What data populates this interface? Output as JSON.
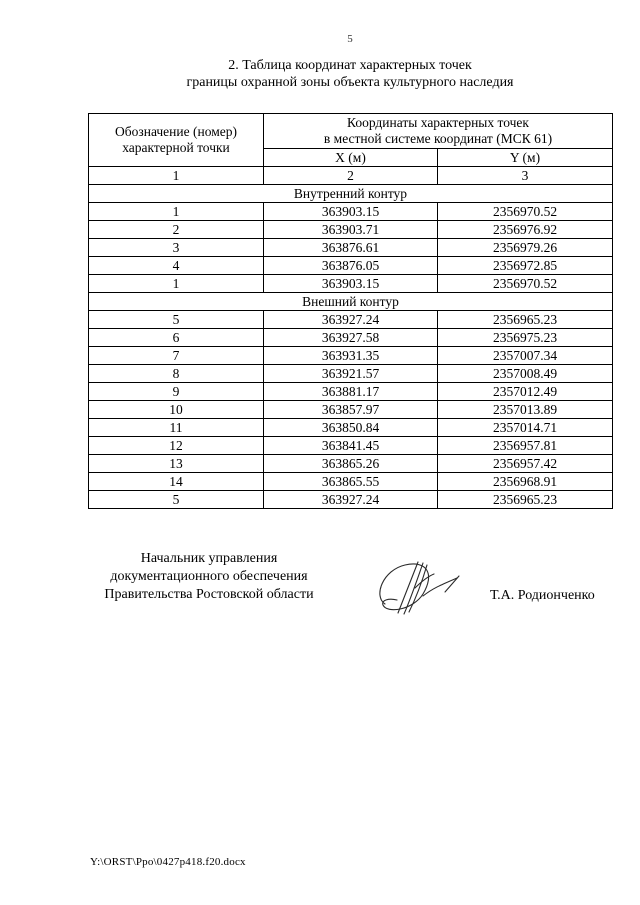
{
  "page": {
    "number": "5",
    "footer_path": "Y:\\ORST\\Ppo\\0427p418.f20.docx"
  },
  "title": {
    "line1": "2. Таблица координат характерных точек",
    "line2": "границы охранной зоны объекта культурного наследия"
  },
  "table": {
    "header": {
      "point_label_line1": "Обозначение (номер)",
      "point_label_line2": "характерной точки",
      "coords_label_line1": "Координаты характерных точек",
      "coords_label_line2": "в местной системе координат (МСК 61)",
      "x_label": "X (м)",
      "y_label": "Y (м)",
      "col_num_1": "1",
      "col_num_2": "2",
      "col_num_3": "3"
    },
    "sections": [
      {
        "name": "Внутренний контур",
        "rows": [
          [
            "1",
            "363903.15",
            "2356970.52"
          ],
          [
            "2",
            "363903.71",
            "2356976.92"
          ],
          [
            "3",
            "363876.61",
            "2356979.26"
          ],
          [
            "4",
            "363876.05",
            "2356972.85"
          ],
          [
            "1",
            "363903.15",
            "2356970.52"
          ]
        ]
      },
      {
        "name": "Внешний контур",
        "rows": [
          [
            "5",
            "363927.24",
            "2356965.23"
          ],
          [
            "6",
            "363927.58",
            "2356975.23"
          ],
          [
            "7",
            "363931.35",
            "2357007.34"
          ],
          [
            "8",
            "363921.57",
            "2357008.49"
          ],
          [
            "9",
            "363881.17",
            "2357012.49"
          ],
          [
            "10",
            "363857.97",
            "2357013.89"
          ],
          [
            "11",
            "363850.84",
            "2357014.71"
          ],
          [
            "12",
            "363841.45",
            "2356957.81"
          ],
          [
            "13",
            "363865.26",
            "2356957.42"
          ],
          [
            "14",
            "363865.55",
            "2356968.91"
          ],
          [
            "5",
            "363927.24",
            "2356965.23"
          ]
        ]
      }
    ]
  },
  "signature": {
    "position_line1": "Начальник управления",
    "position_line2": "документационного обеспечения",
    "position_line3": "Правительства Ростовской области",
    "name": "Т.А. Родионченко"
  },
  "colors": {
    "ink": "#000000",
    "paper": "#ffffff",
    "signature_ink": "#2a2a2a"
  }
}
